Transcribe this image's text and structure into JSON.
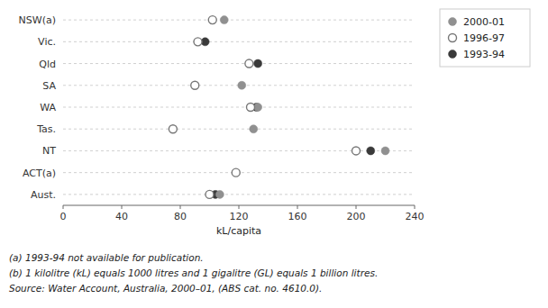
{
  "chart_data": {
    "type": "dot",
    "orientation": "horizontal",
    "categories": [
      "NSW(a)",
      "Vic.",
      "Qld",
      "SA",
      "WA",
      "Tas.",
      "NT",
      "ACT(a)",
      "Aust."
    ],
    "series": [
      {
        "name": "2000-01",
        "color": "#909090",
        "marker": "circle",
        "values": [
          110,
          null,
          null,
          122,
          133,
          130,
          220,
          null,
          107
        ]
      },
      {
        "name": "1996-97",
        "color": "#ffffff",
        "marker": "circle-open",
        "values": [
          102,
          92,
          127,
          90,
          128,
          75,
          200,
          118,
          100
        ]
      },
      {
        "name": "1993-94",
        "color": "#3a3a3a",
        "marker": "circle",
        "values": [
          null,
          97,
          133,
          null,
          132,
          null,
          210,
          null,
          104
        ]
      }
    ],
    "xlabel": "kL/capita",
    "xlim": [
      0,
      240
    ],
    "xticks": [
      0,
      40,
      80,
      120,
      160,
      200,
      240
    ],
    "grid": true,
    "legend": "right",
    "annotations": [
      "(a) 1993-94 not available for publication.",
      "(b) 1 kilolitre (kL) equals 1000 litres and 1 gigalitre (GL) equals 1 billion litres.",
      "Source: Water Account, Australia, 2000–01, (ABS cat. no. 4610.0)."
    ]
  }
}
